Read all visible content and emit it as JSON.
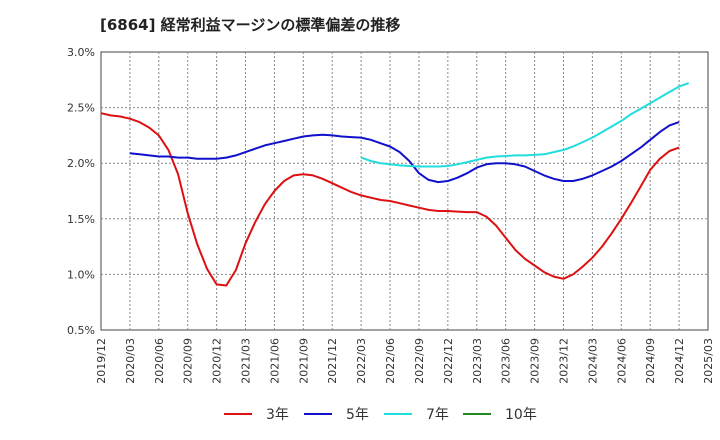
{
  "chart_data": {
    "type": "line",
    "title": "[6864]  経常利益マージンの標準偏差の推移",
    "xlabel": "",
    "ylabel": "",
    "ylim": [
      0.5,
      3.0
    ],
    "yticks": [
      "0.5%",
      "1.0%",
      "1.5%",
      "2.0%",
      "2.5%",
      "3.0%"
    ],
    "ytick_values": [
      0.5,
      1.0,
      1.5,
      2.0,
      2.5,
      3.0
    ],
    "xticks": [
      "2019/12",
      "2020/03",
      "2020/06",
      "2020/09",
      "2020/12",
      "2021/03",
      "2021/06",
      "2021/09",
      "2021/12",
      "2022/03",
      "2022/06",
      "2022/09",
      "2022/12",
      "2023/03",
      "2023/06",
      "2023/09",
      "2023/12",
      "2024/03",
      "2024/06",
      "2024/09",
      "2024/12",
      "2025/03"
    ],
    "grid": true,
    "legend_position": "bottom",
    "series": [
      {
        "name": "3年",
        "color": "#dd1111",
        "values": [
          [
            "2019/12",
            2.45
          ],
          [
            "2020/01",
            2.43
          ],
          [
            "2020/02",
            2.42
          ],
          [
            "2020/03",
            2.4
          ],
          [
            "2020/04",
            2.37
          ],
          [
            "2020/05",
            2.32
          ],
          [
            "2020/06",
            2.25
          ],
          [
            "2020/07",
            2.12
          ],
          [
            "2020/08",
            1.9
          ],
          [
            "2020/09",
            1.55
          ],
          [
            "2020/10",
            1.27
          ],
          [
            "2020/11",
            1.05
          ],
          [
            "2020/12",
            0.91
          ],
          [
            "2021/01",
            0.9
          ],
          [
            "2021/02",
            1.04
          ],
          [
            "2021/03",
            1.28
          ],
          [
            "2021/04",
            1.47
          ],
          [
            "2021/05",
            1.63
          ],
          [
            "2021/06",
            1.75
          ],
          [
            "2021/07",
            1.84
          ],
          [
            "2021/08",
            1.89
          ],
          [
            "2021/09",
            1.9
          ],
          [
            "2021/10",
            1.89
          ],
          [
            "2021/11",
            1.86
          ],
          [
            "2021/12",
            1.82
          ],
          [
            "2022/01",
            1.78
          ],
          [
            "2022/02",
            1.74
          ],
          [
            "2022/03",
            1.71
          ],
          [
            "2022/04",
            1.69
          ],
          [
            "2022/05",
            1.67
          ],
          [
            "2022/06",
            1.66
          ],
          [
            "2022/07",
            1.64
          ],
          [
            "2022/08",
            1.62
          ],
          [
            "2022/09",
            1.6
          ],
          [
            "2022/10",
            1.58
          ],
          [
            "2022/11",
            1.57
          ],
          [
            "2022/12",
            1.57
          ],
          [
            "2023/01",
            1.565
          ],
          [
            "2023/02",
            1.56
          ],
          [
            "2023/03",
            1.56
          ],
          [
            "2023/04",
            1.52
          ],
          [
            "2023/05",
            1.44
          ],
          [
            "2023/06",
            1.33
          ],
          [
            "2023/07",
            1.22
          ],
          [
            "2023/08",
            1.14
          ],
          [
            "2023/09",
            1.08
          ],
          [
            "2023/10",
            1.02
          ],
          [
            "2023/11",
            0.98
          ],
          [
            "2023/12",
            0.96
          ],
          [
            "2024/01",
            1.0
          ],
          [
            "2024/02",
            1.07
          ],
          [
            "2024/03",
            1.15
          ],
          [
            "2024/04",
            1.25
          ],
          [
            "2024/05",
            1.37
          ],
          [
            "2024/06",
            1.5
          ],
          [
            "2024/07",
            1.64
          ],
          [
            "2024/08",
            1.79
          ],
          [
            "2024/09",
            1.94
          ],
          [
            "2024/10",
            2.04
          ],
          [
            "2024/11",
            2.11
          ],
          [
            "2024/12",
            2.14
          ]
        ]
      },
      {
        "name": "5年",
        "color": "#1111cc",
        "values": [
          [
            "2020/03",
            2.09
          ],
          [
            "2020/04",
            2.08
          ],
          [
            "2020/05",
            2.07
          ],
          [
            "2020/06",
            2.06
          ],
          [
            "2020/07",
            2.06
          ],
          [
            "2020/08",
            2.05
          ],
          [
            "2020/09",
            2.05
          ],
          [
            "2020/10",
            2.04
          ],
          [
            "2020/11",
            2.04
          ],
          [
            "2020/12",
            2.04
          ],
          [
            "2021/01",
            2.05
          ],
          [
            "2021/02",
            2.07
          ],
          [
            "2021/03",
            2.1
          ],
          [
            "2021/04",
            2.13
          ],
          [
            "2021/05",
            2.16
          ],
          [
            "2021/06",
            2.18
          ],
          [
            "2021/07",
            2.2
          ],
          [
            "2021/08",
            2.22
          ],
          [
            "2021/09",
            2.24
          ],
          [
            "2021/10",
            2.25
          ],
          [
            "2021/11",
            2.255
          ],
          [
            "2021/12",
            2.25
          ],
          [
            "2022/01",
            2.24
          ],
          [
            "2022/02",
            2.235
          ],
          [
            "2022/03",
            2.23
          ],
          [
            "2022/04",
            2.21
          ],
          [
            "2022/05",
            2.18
          ],
          [
            "2022/06",
            2.15
          ],
          [
            "2022/07",
            2.1
          ],
          [
            "2022/08",
            2.02
          ],
          [
            "2022/09",
            1.91
          ],
          [
            "2022/10",
            1.85
          ],
          [
            "2022/11",
            1.83
          ],
          [
            "2022/12",
            1.84
          ],
          [
            "2023/01",
            1.87
          ],
          [
            "2023/02",
            1.91
          ],
          [
            "2023/03",
            1.96
          ],
          [
            "2023/04",
            1.99
          ],
          [
            "2023/05",
            2.0
          ],
          [
            "2023/06",
            2.0
          ],
          [
            "2023/07",
            1.99
          ],
          [
            "2023/08",
            1.97
          ],
          [
            "2023/09",
            1.93
          ],
          [
            "2023/10",
            1.89
          ],
          [
            "2023/11",
            1.86
          ],
          [
            "2023/12",
            1.84
          ],
          [
            "2024/01",
            1.84
          ],
          [
            "2024/02",
            1.86
          ],
          [
            "2024/03",
            1.89
          ],
          [
            "2024/04",
            1.93
          ],
          [
            "2024/05",
            1.97
          ],
          [
            "2024/06",
            2.02
          ],
          [
            "2024/07",
            2.08
          ],
          [
            "2024/08",
            2.14
          ],
          [
            "2024/09",
            2.21
          ],
          [
            "2024/10",
            2.28
          ],
          [
            "2024/11",
            2.34
          ],
          [
            "2024/12",
            2.37
          ]
        ]
      },
      {
        "name": "7年",
        "color": "#22dddd",
        "values": [
          [
            "2022/03",
            2.05
          ],
          [
            "2022/04",
            2.02
          ],
          [
            "2022/05",
            2.0
          ],
          [
            "2022/06",
            1.99
          ],
          [
            "2022/07",
            1.98
          ],
          [
            "2022/08",
            1.975
          ],
          [
            "2022/09",
            1.97
          ],
          [
            "2022/10",
            1.97
          ],
          [
            "2022/11",
            1.97
          ],
          [
            "2022/12",
            1.975
          ],
          [
            "2023/01",
            1.99
          ],
          [
            "2023/02",
            2.01
          ],
          [
            "2023/03",
            2.03
          ],
          [
            "2023/04",
            2.05
          ],
          [
            "2023/05",
            2.06
          ],
          [
            "2023/06",
            2.065
          ],
          [
            "2023/07",
            2.07
          ],
          [
            "2023/08",
            2.07
          ],
          [
            "2023/09",
            2.075
          ],
          [
            "2023/10",
            2.08
          ],
          [
            "2023/11",
            2.1
          ],
          [
            "2023/12",
            2.12
          ],
          [
            "2024/01",
            2.15
          ],
          [
            "2024/02",
            2.19
          ],
          [
            "2024/03",
            2.23
          ],
          [
            "2024/04",
            2.28
          ],
          [
            "2024/05",
            2.33
          ],
          [
            "2024/06",
            2.38
          ],
          [
            "2024/07",
            2.44
          ],
          [
            "2024/08",
            2.49
          ],
          [
            "2024/09",
            2.54
          ],
          [
            "2024/10",
            2.59
          ],
          [
            "2024/11",
            2.64
          ],
          [
            "2024/12",
            2.69
          ],
          [
            "2025/01",
            2.72
          ]
        ]
      },
      {
        "name": "10年",
        "color": "#228822",
        "values": []
      }
    ]
  }
}
